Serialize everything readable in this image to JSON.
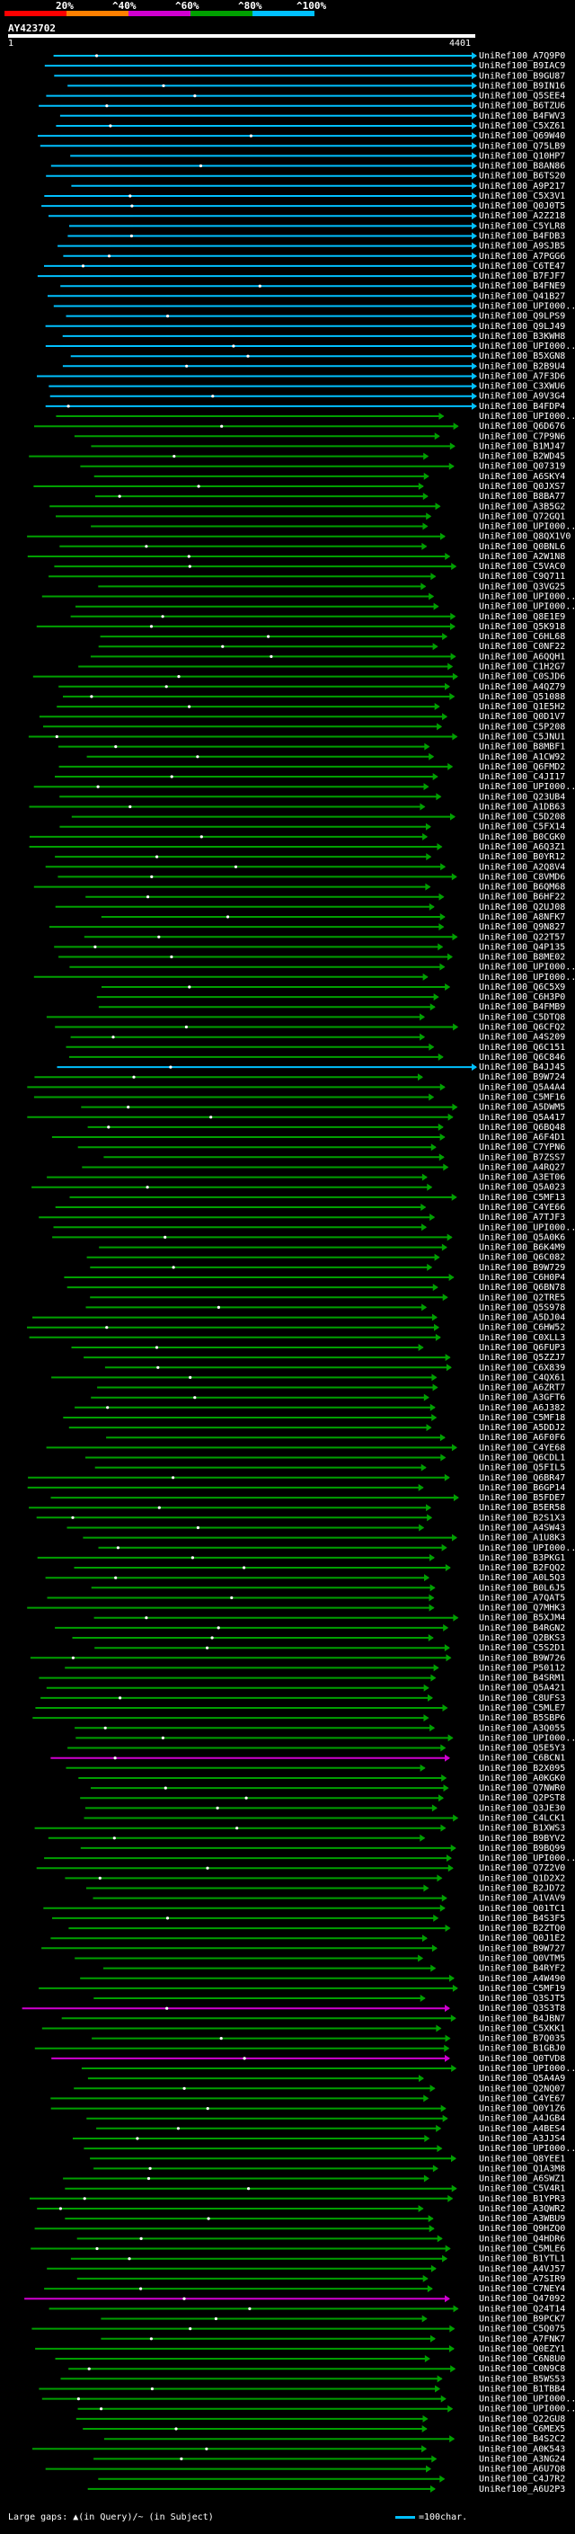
{
  "legend": {
    "labels": [
      "20%",
      "^40%",
      "^60%",
      "^80%",
      "^100%"
    ],
    "colors": [
      "#ff0000",
      "#ff8000",
      "#d000d0",
      "#00a000",
      "#00c0ff"
    ]
  },
  "query": {
    "id": "AY423702",
    "start": "1",
    "end": "4401"
  },
  "footer": {
    "gaps_text": "Large gaps: ▲(in Query)/~ (in Subject)",
    "scale_text": "=100char."
  },
  "hits": [
    {
      "label": "UniRef100_A7Q9P0",
      "color": "#00c0ff"
    },
    {
      "label": "UniRef100_B9IAC9",
      "color": "#00c0ff"
    },
    {
      "label": "UniRef100_B9GU87",
      "color": "#00c0ff"
    },
    {
      "label": "UniRef100_B9IN16",
      "color": "#00c0ff"
    },
    {
      "label": "UniRef100_Q5SEE4",
      "color": "#00c0ff"
    },
    {
      "label": "UniRef100_B6TZU6",
      "color": "#00c0ff"
    },
    {
      "label": "UniRef100_B4FWV3",
      "color": "#00c0ff"
    },
    {
      "label": "UniRef100_C5XZ61",
      "color": "#00c0ff"
    },
    {
      "label": "UniRef100_Q69W40",
      "color": "#00c0ff"
    },
    {
      "label": "UniRef100_Q75LB9",
      "color": "#00c0ff"
    },
    {
      "label": "UniRef100_Q10HP7",
      "color": "#00c0ff"
    },
    {
      "label": "UniRef100_B8AN86",
      "color": "#00c0ff"
    },
    {
      "label": "UniRef100_B6TS20",
      "color": "#00c0ff"
    },
    {
      "label": "UniRef100_A9P217",
      "color": "#00c0ff"
    },
    {
      "label": "UniRef100_C5X3V1",
      "color": "#00c0ff"
    },
    {
      "label": "UniRef100_Q0J0T5",
      "color": "#00c0ff"
    },
    {
      "label": "UniRef100_A2Z218",
      "color": "#00c0ff"
    },
    {
      "label": "UniRef100_C5YLR8",
      "color": "#00c0ff"
    },
    {
      "label": "UniRef100_B4FDB3",
      "color": "#00c0ff"
    },
    {
      "label": "UniRef100_A9SJB5",
      "color": "#00c0ff"
    },
    {
      "label": "UniRef100_A7PGG6",
      "color": "#00c0ff"
    },
    {
      "label": "UniRef100_C6TE47",
      "color": "#00c0ff"
    },
    {
      "label": "UniRef100_B7FJF7",
      "color": "#00c0ff"
    },
    {
      "label": "UniRef100_B4FNE9",
      "color": "#00c0ff"
    },
    {
      "label": "UniRef100_Q41B27",
      "color": "#00c0ff"
    },
    {
      "label": "UniRef100_UPI000...",
      "color": "#00c0ff"
    },
    {
      "label": "UniRef100_Q9LPS9",
      "color": "#00c0ff"
    },
    {
      "label": "UniRef100_Q9LJ49",
      "color": "#00c0ff"
    },
    {
      "label": "UniRef100_B3KWH8",
      "color": "#00c0ff"
    },
    {
      "label": "UniRef100_UPI000...",
      "color": "#00c0ff"
    },
    {
      "label": "UniRef100_B5XGN8",
      "color": "#00c0ff"
    },
    {
      "label": "UniRef100_B2B9U4",
      "color": "#00c0ff"
    },
    {
      "label": "UniRef100_A7F3D6",
      "color": "#00c0ff"
    },
    {
      "label": "UniRef100_C3XWU6",
      "color": "#00c0ff"
    },
    {
      "label": "UniRef100_A9V3G4",
      "color": "#00c0ff"
    },
    {
      "label": "UniRef100_B4FDP4",
      "color": "#00c0ff"
    },
    {
      "label": "UniRef100_UPI000...",
      "color": "#00a000"
    },
    {
      "label": "UniRef100_Q6D676",
      "color": "#00a000"
    },
    {
      "label": "UniRef100_C7P9N6",
      "color": "#00a000"
    },
    {
      "label": "UniRef100_B1MJ47",
      "color": "#00a000"
    },
    {
      "label": "UniRef100_B2WD45",
      "color": "#00a000"
    },
    {
      "label": "UniRef100_Q07319",
      "color": "#00a000"
    },
    {
      "label": "UniRef100_A6SKY4",
      "color": "#00a000"
    },
    {
      "label": "UniRef100_Q0JXS7",
      "color": "#00a000"
    },
    {
      "label": "UniRef100_B8BA77",
      "color": "#00a000"
    },
    {
      "label": "UniRef100_A3B5G2",
      "color": "#00a000"
    },
    {
      "label": "UniRef100_Q72GQ1",
      "color": "#00a000"
    },
    {
      "label": "UniRef100_UPI000...",
      "color": "#00a000"
    },
    {
      "label": "UniRef100_Q8QX1V0",
      "color": "#00a000"
    },
    {
      "label": "UniRef100_Q0BNL6",
      "color": "#00a000"
    },
    {
      "label": "UniRef100_A2W1N8",
      "color": "#00a000"
    },
    {
      "label": "UniRef100_C5VAC0",
      "color": "#00a000"
    },
    {
      "label": "UniRef100_C9Q711",
      "color": "#00a000"
    },
    {
      "label": "UniRef100_Q3VG25",
      "color": "#00a000"
    },
    {
      "label": "UniRef100_UPI000...",
      "color": "#00a000"
    },
    {
      "label": "UniRef100_UPI000...",
      "color": "#00a000"
    },
    {
      "label": "UniRef100_Q8E1E9",
      "color": "#00a000"
    },
    {
      "label": "UniRef100_Q5K918",
      "color": "#00a000"
    },
    {
      "label": "UniRef100_C6HL68",
      "color": "#00a000"
    },
    {
      "label": "UniRef100_C0NF22",
      "color": "#00a000"
    },
    {
      "label": "UniRef100_A6QQH1",
      "color": "#00a000"
    },
    {
      "label": "UniRef100_C1H2G7",
      "color": "#00a000"
    },
    {
      "label": "UniRef100_C0SJD6",
      "color": "#00a000"
    },
    {
      "label": "UniRef100_A4QZ79",
      "color": "#00a000"
    },
    {
      "label": "UniRef100_Q51088",
      "color": "#00a000"
    },
    {
      "label": "UniRef100_Q1E5H2",
      "color": "#00a000"
    },
    {
      "label": "UniRef100_Q0D1V7",
      "color": "#00a000"
    },
    {
      "label": "UniRef100_C5P208",
      "color": "#00a000"
    },
    {
      "label": "UniRef100_C5JNU1",
      "color": "#00a000"
    },
    {
      "label": "UniRef100_B8MBF1",
      "color": "#00a000"
    },
    {
      "label": "UniRef100_A1CW92",
      "color": "#00a000"
    },
    {
      "label": "UniRef100_Q6FMD2",
      "color": "#00a000"
    },
    {
      "label": "UniRef100_C4JI17",
      "color": "#00a000"
    },
    {
      "label": "UniRef100_UPI000...",
      "color": "#00a000"
    },
    {
      "label": "UniRef100_Q23UB4",
      "color": "#00a000"
    },
    {
      "label": "UniRef100_A1DB63",
      "color": "#00a000"
    },
    {
      "label": "UniRef100_C5D208",
      "color": "#00a000"
    },
    {
      "label": "UniRef100_C5FX14",
      "color": "#00a000"
    },
    {
      "label": "UniRef100_B0CGK0",
      "color": "#00a000"
    },
    {
      "label": "UniRef100_A6Q3Z1",
      "color": "#00a000"
    },
    {
      "label": "UniRef100_B0YR12",
      "color": "#00a000"
    },
    {
      "label": "UniRef100_A2Q8V4",
      "color": "#00a000"
    },
    {
      "label": "UniRef100_C8VMD6",
      "color": "#00a000"
    },
    {
      "label": "UniRef100_B6QM68",
      "color": "#00a000"
    },
    {
      "label": "UniRef100_B6HF22",
      "color": "#00a000"
    },
    {
      "label": "UniRef100_Q2UJ08",
      "color": "#00a000"
    },
    {
      "label": "UniRef100_A8NFK7",
      "color": "#00a000"
    },
    {
      "label": "UniRef100_Q9N827",
      "color": "#00a000"
    },
    {
      "label": "UniRef100_Q22T57",
      "color": "#00a000"
    },
    {
      "label": "UniRef100_Q4P135",
      "color": "#00a000"
    },
    {
      "label": "UniRef100_B8ME02",
      "color": "#00a000"
    },
    {
      "label": "UniRef100_UPI000...",
      "color": "#00a000"
    },
    {
      "label": "UniRef100_UPI000...",
      "color": "#00a000"
    },
    {
      "label": "UniRef100_Q6C5X9",
      "color": "#00a000"
    },
    {
      "label": "UniRef100_C6H3P0",
      "color": "#00a000"
    },
    {
      "label": "UniRef100_B4FMB9",
      "color": "#00a000"
    },
    {
      "label": "UniRef100_C5DTQ8",
      "color": "#00a000"
    },
    {
      "label": "UniRef100_Q6CFQ2",
      "color": "#00a000"
    },
    {
      "label": "UniRef100_A4S209",
      "color": "#00a000"
    },
    {
      "label": "UniRef100_Q6C151",
      "color": "#00a000"
    },
    {
      "label": "UniRef100_Q6C846",
      "color": "#00a000"
    },
    {
      "label": "UniRef100_B4JJ45",
      "color": "#00c0ff"
    },
    {
      "label": "UniRef100_B9W724",
      "color": "#00a000"
    },
    {
      "label": "UniRef100_Q5A4A4",
      "color": "#00a000"
    },
    {
      "label": "UniRef100_C5MF16",
      "color": "#00a000"
    },
    {
      "label": "UniRef100_A5DWM5",
      "color": "#00a000"
    },
    {
      "label": "UniRef100_Q5A417",
      "color": "#00a000"
    },
    {
      "label": "UniRef100_Q6BQ48",
      "color": "#00a000"
    },
    {
      "label": "UniRef100_A6F4D1",
      "color": "#00a000"
    },
    {
      "label": "UniRef100_C7YPN6",
      "color": "#00a000"
    },
    {
      "label": "UniRef100_B7ZSS7",
      "color": "#00a000"
    },
    {
      "label": "UniRef100_A4RQ27",
      "color": "#00a000"
    },
    {
      "label": "UniRef100_A3ET06",
      "color": "#00a000"
    },
    {
      "label": "UniRef100_Q5A023",
      "color": "#00a000"
    },
    {
      "label": "UniRef100_C5MF13",
      "color": "#00a000"
    },
    {
      "label": "UniRef100_C4YE66",
      "color": "#00a000"
    },
    {
      "label": "UniRef100_A7TJF3",
      "color": "#00a000"
    },
    {
      "label": "UniRef100_UPI000...",
      "color": "#00a000"
    },
    {
      "label": "UniRef100_Q5A0K6",
      "color": "#00a000"
    },
    {
      "label": "UniRef100_B6K4M9",
      "color": "#00a000"
    },
    {
      "label": "UniRef100_Q6C082",
      "color": "#00a000"
    },
    {
      "label": "UniRef100_B9W729",
      "color": "#00a000"
    },
    {
      "label": "UniRef100_C6H0P4",
      "color": "#00a000"
    },
    {
      "label": "UniRef100_Q6BN78",
      "color": "#00a000"
    },
    {
      "label": "UniRef100_Q2TRE5",
      "color": "#00a000"
    },
    {
      "label": "UniRef100_Q5S978",
      "color": "#00a000"
    },
    {
      "label": "UniRef100_A5DJ04",
      "color": "#00a000"
    },
    {
      "label": "UniRef100_C6HW52",
      "color": "#00a000"
    },
    {
      "label": "UniRef100_C0XLL3",
      "color": "#00a000"
    },
    {
      "label": "UniRef100_Q6FUP3",
      "color": "#00a000"
    },
    {
      "label": "UniRef100_Q5ZZJ7",
      "color": "#00a000"
    },
    {
      "label": "UniRef100_C6X839",
      "color": "#00a000"
    },
    {
      "label": "UniRef100_C4QX61",
      "color": "#00a000"
    },
    {
      "label": "UniRef100_A6ZRT7",
      "color": "#00a000"
    },
    {
      "label": "UniRef100_A3GFT6",
      "color": "#00a000"
    },
    {
      "label": "UniRef100_A6J382",
      "color": "#00a000"
    },
    {
      "label": "UniRef100_C5MF18",
      "color": "#00a000"
    },
    {
      "label": "UniRef100_A5DDJ2",
      "color": "#00a000"
    },
    {
      "label": "UniRef100_A6F0F6",
      "color": "#00a000"
    },
    {
      "label": "UniRef100_C4YE68",
      "color": "#00a000"
    },
    {
      "label": "UniRef100_Q6CDL1",
      "color": "#00a000"
    },
    {
      "label": "UniRef100_Q5FIL5",
      "color": "#00a000"
    },
    {
      "label": "UniRef100_Q6BR47",
      "color": "#00a000"
    },
    {
      "label": "UniRef100_B6GP14",
      "color": "#00a000"
    },
    {
      "label": "UniRef100_B5FDE7",
      "color": "#00a000"
    },
    {
      "label": "UniRef100_B5ER58",
      "color": "#00a000"
    },
    {
      "label": "UniRef100_B2S1X3",
      "color": "#00a000"
    },
    {
      "label": "UniRef100_A4SW43",
      "color": "#00a000"
    },
    {
      "label": "UniRef100_A1U8K3",
      "color": "#00a000"
    },
    {
      "label": "UniRef100_UPI000...",
      "color": "#00a000"
    },
    {
      "label": "UniRef100_B3PKG1",
      "color": "#00a000"
    },
    {
      "label": "UniRef100_B2FQQ2",
      "color": "#00a000"
    },
    {
      "label": "UniRef100_A0L5Q3",
      "color": "#00a000"
    },
    {
      "label": "UniRef100_B0L6J5",
      "color": "#00a000"
    },
    {
      "label": "UniRef100_A7QAT5",
      "color": "#00a000"
    },
    {
      "label": "UniRef100_Q7MHK3",
      "color": "#00a000"
    },
    {
      "label": "UniRef100_B5XJM4",
      "color": "#00a000"
    },
    {
      "label": "UniRef100_B4RGN2",
      "color": "#00a000"
    },
    {
      "label": "UniRef100_Q2BKS3",
      "color": "#00a000"
    },
    {
      "label": "UniRef100_C5S2D1",
      "color": "#00a000"
    },
    {
      "label": "UniRef100_B9W726",
      "color": "#00a000"
    },
    {
      "label": "UniRef100_P50112",
      "color": "#00a000"
    },
    {
      "label": "UniRef100_B4SRM1",
      "color": "#00a000"
    },
    {
      "label": "UniRef100_Q5A421",
      "color": "#00a000"
    },
    {
      "label": "UniRef100_C8UFS3",
      "color": "#00a000"
    },
    {
      "label": "UniRef100_C5MLE7",
      "color": "#00a000"
    },
    {
      "label": "UniRef100_B5SBP6",
      "color": "#00a000"
    },
    {
      "label": "UniRef100_A3Q055",
      "color": "#00a000"
    },
    {
      "label": "UniRef100_UPI000...",
      "color": "#00a000"
    },
    {
      "label": "UniRef100_Q5E5Y3",
      "color": "#00a000"
    },
    {
      "label": "UniRef100_C6BCN1",
      "color": "#d000d0"
    },
    {
      "label": "UniRef100_B2X095",
      "color": "#00a000"
    },
    {
      "label": "UniRef100_A0KGK0",
      "color": "#00a000"
    },
    {
      "label": "UniRef100_Q7NWR0",
      "color": "#00a000"
    },
    {
      "label": "UniRef100_Q2PST8",
      "color": "#00a000"
    },
    {
      "label": "UniRef100_Q3JE30",
      "color": "#00a000"
    },
    {
      "label": "UniRef100_C4LCK1",
      "color": "#00a000"
    },
    {
      "label": "UniRef100_B1XWS3",
      "color": "#00a000"
    },
    {
      "label": "UniRef100_B9BYV2",
      "color": "#00a000"
    },
    {
      "label": "UniRef100_B9BQ99",
      "color": "#00a000"
    },
    {
      "label": "UniRef100_UPI000...",
      "color": "#00a000"
    },
    {
      "label": "UniRef100_Q7Z2V0",
      "color": "#00a000"
    },
    {
      "label": "UniRef100_Q1D2X2",
      "color": "#00a000"
    },
    {
      "label": "UniRef100_B2JD72",
      "color": "#00a000"
    },
    {
      "label": "UniRef100_A1VAV9",
      "color": "#00a000"
    },
    {
      "label": "UniRef100_Q01TC1",
      "color": "#00a000"
    },
    {
      "label": "UniRef100_B4S3F5",
      "color": "#00a000"
    },
    {
      "label": "UniRef100_B2ZTQ0",
      "color": "#00a000"
    },
    {
      "label": "UniRef100_Q0J1E2",
      "color": "#00a000"
    },
    {
      "label": "UniRef100_B9W727",
      "color": "#00a000"
    },
    {
      "label": "UniRef100_Q0VTM5",
      "color": "#00a000"
    },
    {
      "label": "UniRef100_B4RYF2",
      "color": "#00a000"
    },
    {
      "label": "UniRef100_A4W490",
      "color": "#00a000"
    },
    {
      "label": "UniRef100_C5MF19",
      "color": "#00a000"
    },
    {
      "label": "UniRef100_Q3SJT5",
      "color": "#00a000"
    },
    {
      "label": "UniRef100_Q3S3T8",
      "color": "#d000d0"
    },
    {
      "label": "UniRef100_B4JBN7",
      "color": "#00a000"
    },
    {
      "label": "UniRef100_C5XKK1",
      "color": "#00a000"
    },
    {
      "label": "UniRef100_B7Q035",
      "color": "#00a000"
    },
    {
      "label": "UniRef100_B1GBJ0",
      "color": "#00a000"
    },
    {
      "label": "UniRef100_Q0TVD8",
      "color": "#d000d0"
    },
    {
      "label": "UniRef100_UPI000...",
      "color": "#00a000"
    },
    {
      "label": "UniRef100_Q5A4A9",
      "color": "#00a000"
    },
    {
      "label": "UniRef100_Q2NQ07",
      "color": "#00a000"
    },
    {
      "label": "UniRef100_C4YE67",
      "color": "#00a000"
    },
    {
      "label": "UniRef100_Q0Y1Z6",
      "color": "#00a000"
    },
    {
      "label": "UniRef100_A4JGB4",
      "color": "#00a000"
    },
    {
      "label": "UniRef100_A4BES4",
      "color": "#00a000"
    },
    {
      "label": "UniRef100_A3JJS4",
      "color": "#00a000"
    },
    {
      "label": "UniRef100_UPI000...",
      "color": "#00a000"
    },
    {
      "label": "UniRef100_Q8YEE1",
      "color": "#00a000"
    },
    {
      "label": "UniRef100_Q1A3M8",
      "color": "#00a000"
    },
    {
      "label": "UniRef100_A6SWZ1",
      "color": "#00a000"
    },
    {
      "label": "UniRef100_C5V4R1",
      "color": "#00a000"
    },
    {
      "label": "UniRef100_B1YPR3",
      "color": "#00a000"
    },
    {
      "label": "UniRef100_A3QWR2",
      "color": "#00a000"
    },
    {
      "label": "UniRef100_A3WBU9",
      "color": "#00a000"
    },
    {
      "label": "UniRef100_Q9HZQ0",
      "color": "#00a000"
    },
    {
      "label": "UniRef100_Q4HDR6",
      "color": "#00a000"
    },
    {
      "label": "UniRef100_C5MLE6",
      "color": "#00a000"
    },
    {
      "label": "UniRef100_B1YTL1",
      "color": "#00a000"
    },
    {
      "label": "UniRef100_A4VJ57",
      "color": "#00a000"
    },
    {
      "label": "UniRef100_A7SIR9",
      "color": "#00a000"
    },
    {
      "label": "UniRef100_C7NEY4",
      "color": "#00a000"
    },
    {
      "label": "UniRef100_Q47092",
      "color": "#d000d0"
    },
    {
      "label": "UniRef100_Q24T14",
      "color": "#00a000"
    },
    {
      "label": "UniRef100_B9PCK7",
      "color": "#00a000"
    },
    {
      "label": "UniRef100_C5Q075",
      "color": "#00a000"
    },
    {
      "label": "UniRef100_A7FNK7",
      "color": "#00a000"
    },
    {
      "label": "UniRef100_Q0EZY1",
      "color": "#00a000"
    },
    {
      "label": "UniRef100_C6N8U0",
      "color": "#00a000"
    },
    {
      "label": "UniRef100_C0N9C8",
      "color": "#00a000"
    },
    {
      "label": "UniRef100_B5WS53",
      "color": "#00a000"
    },
    {
      "label": "UniRef100_B1TBB4",
      "color": "#00a000"
    },
    {
      "label": "UniRef100_UPI000...",
      "color": "#00a000"
    },
    {
      "label": "UniRef100_UPI000...",
      "color": "#00a000"
    },
    {
      "label": "UniRef100_Q22GU8",
      "color": "#00a000"
    },
    {
      "label": "UniRef100_C6MEX5",
      "color": "#00a000"
    },
    {
      "label": "UniRef100_B4S2C2",
      "color": "#00a000"
    },
    {
      "label": "UniRef100_A0K543",
      "color": "#00a000"
    },
    {
      "label": "UniRef100_A3NG24",
      "color": "#00a000"
    },
    {
      "label": "UniRef100_A6U7Q8",
      "color": "#00a000"
    },
    {
      "label": "UniRef100_C4J7R2",
      "color": "#00a000"
    },
    {
      "label": "UniRef100_A6U2P3",
      "color": "#00a000"
    }
  ]
}
